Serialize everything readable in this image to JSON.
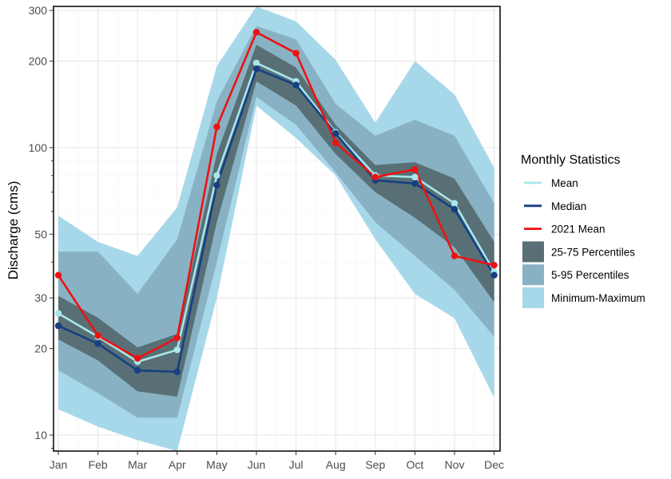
{
  "chart_data": {
    "type": "line",
    "title": "",
    "xlabel": "",
    "ylabel": "Discharge (cms)",
    "yscale": "log",
    "ylim": [
      8.8,
      310
    ],
    "y_ticks": [
      10,
      20,
      30,
      50,
      100,
      200,
      300
    ],
    "grid": true,
    "legend_title": "Monthly Statistics",
    "legend_position": "right",
    "categories": [
      "Jan",
      "Feb",
      "Mar",
      "Apr",
      "May",
      "Jun",
      "Jul",
      "Aug",
      "Sep",
      "Oct",
      "Nov",
      "Dec"
    ],
    "series": [
      {
        "name": "Mean",
        "color": "#a8e6ec",
        "values": [
          26.5,
          22.0,
          18.0,
          19.8,
          80,
          197,
          170,
          113,
          80,
          79,
          64,
          37
        ]
      },
      {
        "name": "Median",
        "color": "#173f82",
        "values": [
          24.0,
          20.8,
          16.8,
          16.6,
          74,
          188,
          165,
          112,
          77,
          75,
          61,
          36
        ]
      },
      {
        "name": "2021 Mean",
        "color": "#ee1111",
        "values": [
          36,
          22.2,
          18.5,
          21.8,
          118,
          252,
          213,
          104,
          79,
          84,
          42,
          39
        ]
      }
    ],
    "bands": [
      {
        "name": "Minimum-Maximum",
        "color": "#a6d8ea",
        "lower": [
          12.3,
          10.7,
          9.6,
          8.5,
          30,
          140,
          108,
          80,
          48,
          31,
          25.5,
          13.5
        ],
        "upper": [
          58,
          47,
          42,
          62,
          192,
          310,
          275,
          202,
          122,
          200,
          153,
          85
        ]
      },
      {
        "name": "5-95 Percentiles",
        "color": "#88b2c4",
        "lower": [
          16.8,
          14.0,
          11.5,
          11.5,
          40,
          150,
          120,
          82,
          55,
          42,
          32,
          22
        ]
      },
      {
        "name": "5-95 Percentiles upper",
        "upper": [
          43.5,
          43.5,
          31,
          48,
          145,
          265,
          238,
          142,
          110,
          125,
          110,
          64
        ]
      },
      {
        "name": "25-75 Percentiles",
        "color": "#587075",
        "lower": [
          21.5,
          18.2,
          14.2,
          13.6,
          55,
          170,
          140,
          95,
          70,
          57,
          45,
          29
        ]
      },
      {
        "name": "25-75 Percentiles upper",
        "upper": [
          30.5,
          25.6,
          20.2,
          22.5,
          95,
          228,
          190,
          120,
          87,
          89,
          78,
          47
        ]
      }
    ],
    "legend": [
      {
        "label": "Mean",
        "kind": "line",
        "color": "#a8e6ec"
      },
      {
        "label": "Median",
        "kind": "line",
        "color": "#173f82"
      },
      {
        "label": "2021 Mean",
        "kind": "line",
        "color": "#ee1111"
      },
      {
        "label": "25-75 Percentiles",
        "kind": "fill",
        "color": "#587075"
      },
      {
        "label": "5-95 Percentiles",
        "kind": "fill",
        "color": "#88b2c4"
      },
      {
        "label": "Minimum-Maximum",
        "kind": "fill",
        "color": "#a6d8ea"
      }
    ]
  }
}
